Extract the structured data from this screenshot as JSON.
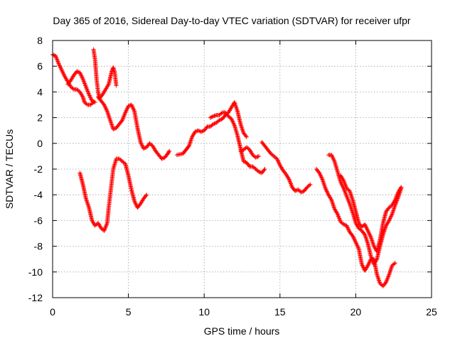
{
  "chart_data": {
    "type": "scatter",
    "title": "Day 365 of 2016, Sidereal Day-to-day VTEC variation (SDTVAR) for receiver ufpr",
    "xlabel": "GPS time / hours",
    "ylabel": "SDTVAR / TECUs",
    "xlim": [
      0,
      25
    ],
    "ylim": [
      -12,
      8
    ],
    "xticks": [
      "0",
      "5",
      "10",
      "15",
      "20",
      "25"
    ],
    "yticks": [
      "-12",
      "-10",
      "-8",
      "-6",
      "-4",
      "-2",
      "0",
      "2",
      "4",
      "6",
      "8"
    ],
    "grid": true,
    "marker": "plus",
    "color": "#ff0000",
    "series": [
      {
        "points": [
          [
            0.0,
            6.9
          ],
          [
            0.2,
            6.8
          ],
          [
            0.4,
            6.2
          ],
          [
            0.6,
            5.7
          ],
          [
            0.8,
            5.2
          ],
          [
            1.0,
            4.8
          ],
          [
            1.2,
            4.4
          ],
          [
            1.4,
            4.2
          ],
          [
            1.6,
            4.2
          ],
          [
            1.8,
            4.0
          ],
          [
            2.0,
            3.6
          ],
          [
            2.1,
            3.2
          ],
          [
            2.3,
            3.0
          ],
          [
            2.5,
            3.0
          ],
          [
            2.7,
            3.2
          ]
        ]
      },
      {
        "points": [
          [
            1.0,
            4.6
          ],
          [
            1.2,
            4.9
          ],
          [
            1.4,
            5.3
          ],
          [
            1.6,
            5.6
          ],
          [
            1.8,
            5.5
          ],
          [
            2.0,
            5.0
          ],
          [
            2.2,
            4.4
          ],
          [
            2.4,
            3.8
          ],
          [
            2.6,
            3.3
          ],
          [
            2.8,
            3.2
          ]
        ]
      },
      {
        "points": [
          [
            2.7,
            7.3
          ],
          [
            2.8,
            6.5
          ],
          [
            2.9,
            5.0
          ],
          [
            3.0,
            4.0
          ],
          [
            3.1,
            3.5
          ],
          [
            3.3,
            3.8
          ],
          [
            3.5,
            4.2
          ],
          [
            3.7,
            4.6
          ],
          [
            3.9,
            5.6
          ],
          [
            4.0,
            5.9
          ],
          [
            4.1,
            5.5
          ],
          [
            4.2,
            4.5
          ]
        ]
      },
      {
        "points": [
          [
            3.0,
            3.6
          ],
          [
            3.2,
            3.3
          ],
          [
            3.4,
            3.0
          ],
          [
            3.6,
            2.5
          ],
          [
            3.8,
            1.8
          ],
          [
            4.0,
            1.1
          ],
          [
            4.2,
            1.2
          ],
          [
            4.4,
            1.5
          ],
          [
            4.6,
            1.8
          ],
          [
            4.8,
            2.4
          ],
          [
            5.0,
            2.9
          ],
          [
            5.2,
            3.0
          ],
          [
            5.4,
            2.5
          ],
          [
            5.6,
            1.2
          ],
          [
            5.8,
            0.1
          ],
          [
            6.0,
            -0.4
          ],
          [
            6.2,
            -0.3
          ],
          [
            6.4,
            0.0
          ],
          [
            6.6,
            -0.2
          ],
          [
            6.8,
            -0.6
          ],
          [
            7.0,
            -0.9
          ],
          [
            7.2,
            -1.2
          ],
          [
            7.4,
            -1.1
          ],
          [
            7.6,
            -0.8
          ],
          [
            7.7,
            -0.6
          ]
        ]
      },
      {
        "points": [
          [
            1.8,
            -2.3
          ],
          [
            2.0,
            -3.2
          ],
          [
            2.2,
            -4.3
          ],
          [
            2.4,
            -5.0
          ],
          [
            2.6,
            -6.0
          ],
          [
            2.8,
            -6.4
          ],
          [
            3.0,
            -6.2
          ],
          [
            3.2,
            -6.6
          ],
          [
            3.4,
            -6.8
          ],
          [
            3.6,
            -6.2
          ],
          [
            3.7,
            -5.0
          ],
          [
            3.8,
            -4.0
          ],
          [
            3.9,
            -3.0
          ],
          [
            4.0,
            -2.0
          ],
          [
            4.2,
            -1.2
          ],
          [
            4.4,
            -1.2
          ],
          [
            4.6,
            -1.4
          ],
          [
            4.8,
            -1.6
          ],
          [
            5.0,
            -2.5
          ],
          [
            5.2,
            -3.6
          ],
          [
            5.4,
            -4.5
          ],
          [
            5.6,
            -5.0
          ],
          [
            5.8,
            -4.7
          ],
          [
            6.0,
            -4.3
          ],
          [
            6.2,
            -4.0
          ]
        ]
      },
      {
        "points": [
          [
            8.2,
            -0.9
          ],
          [
            8.6,
            -0.8
          ],
          [
            9.0,
            -0.2
          ],
          [
            9.2,
            0.5
          ],
          [
            9.4,
            0.9
          ],
          [
            9.6,
            1.0
          ],
          [
            9.8,
            0.9
          ],
          [
            10.0,
            1.0
          ],
          [
            10.2,
            1.3
          ],
          [
            10.4,
            1.3
          ],
          [
            10.6,
            1.5
          ],
          [
            10.8,
            1.6
          ],
          [
            11.0,
            1.8
          ],
          [
            11.2,
            1.9
          ],
          [
            11.4,
            2.2
          ],
          [
            11.6,
            2.4
          ],
          [
            11.8,
            2.8
          ],
          [
            12.0,
            3.2
          ],
          [
            12.2,
            2.5
          ],
          [
            12.4,
            1.5
          ],
          [
            12.6,
            0.8
          ],
          [
            12.8,
            0.5
          ]
        ]
      },
      {
        "points": [
          [
            10.4,
            2.0
          ],
          [
            10.6,
            2.1
          ],
          [
            10.8,
            2.2
          ],
          [
            11.0,
            2.2
          ],
          [
            11.2,
            2.4
          ],
          [
            11.4,
            2.4
          ],
          [
            11.6,
            2.1
          ],
          [
            11.8,
            1.9
          ],
          [
            12.0,
            1.4
          ],
          [
            12.2,
            0.6
          ],
          [
            12.4,
            -0.4
          ],
          [
            12.6,
            -1.4
          ],
          [
            12.8,
            -1.5
          ],
          [
            13.0,
            -1.8
          ],
          [
            13.2,
            -1.8
          ],
          [
            13.4,
            -2.0
          ],
          [
            13.6,
            -2.2
          ],
          [
            13.8,
            -2.3
          ],
          [
            14.0,
            -2.0
          ]
        ]
      },
      {
        "points": [
          [
            12.4,
            -0.6
          ],
          [
            12.6,
            -0.5
          ],
          [
            12.8,
            -0.3
          ],
          [
            13.0,
            -0.5
          ],
          [
            13.2,
            -0.9
          ],
          [
            13.4,
            -1.1
          ],
          [
            13.6,
            -1.0
          ]
        ]
      },
      {
        "points": [
          [
            13.8,
            0.1
          ],
          [
            14.0,
            -0.2
          ],
          [
            14.2,
            -0.5
          ],
          [
            14.4,
            -0.8
          ],
          [
            14.6,
            -1.0
          ],
          [
            14.8,
            -1.2
          ],
          [
            15.0,
            -1.7
          ],
          [
            15.2,
            -2.1
          ],
          [
            15.4,
            -2.4
          ],
          [
            15.6,
            -2.8
          ],
          [
            15.8,
            -3.4
          ],
          [
            16.0,
            -3.7
          ],
          [
            16.2,
            -3.6
          ],
          [
            16.4,
            -3.8
          ],
          [
            16.6,
            -3.7
          ],
          [
            16.8,
            -3.4
          ],
          [
            17.0,
            -3.2
          ]
        ]
      },
      {
        "points": [
          [
            17.4,
            -2.0
          ],
          [
            17.6,
            -2.3
          ],
          [
            17.8,
            -2.8
          ],
          [
            18.0,
            -3.5
          ],
          [
            18.2,
            -4.0
          ],
          [
            18.4,
            -4.4
          ],
          [
            18.6,
            -5.1
          ],
          [
            18.8,
            -5.5
          ],
          [
            19.0,
            -6.1
          ],
          [
            19.2,
            -6.3
          ],
          [
            19.4,
            -6.4
          ],
          [
            19.6,
            -6.9
          ],
          [
            19.8,
            -7.2
          ],
          [
            20.0,
            -7.7
          ],
          [
            20.2,
            -8.2
          ],
          [
            20.4,
            -9.4
          ],
          [
            20.6,
            -9.9
          ],
          [
            20.8,
            -9.5
          ],
          [
            21.0,
            -9.0
          ],
          [
            21.2,
            -9.0
          ],
          [
            21.4,
            -10.2
          ],
          [
            21.6,
            -10.9
          ],
          [
            21.8,
            -11.1
          ],
          [
            22.0,
            -10.8
          ],
          [
            22.2,
            -10.2
          ],
          [
            22.4,
            -9.5
          ],
          [
            22.6,
            -9.3
          ]
        ]
      },
      {
        "points": [
          [
            18.2,
            -0.9
          ],
          [
            18.4,
            -0.9
          ],
          [
            18.6,
            -1.4
          ],
          [
            18.8,
            -2.2
          ],
          [
            19.0,
            -3.0
          ],
          [
            19.2,
            -3.5
          ],
          [
            19.4,
            -4.1
          ],
          [
            19.6,
            -4.7
          ],
          [
            19.8,
            -5.4
          ],
          [
            20.0,
            -6.2
          ],
          [
            20.2,
            -6.6
          ],
          [
            20.4,
            -6.8
          ],
          [
            20.6,
            -7.1
          ],
          [
            20.8,
            -7.8
          ],
          [
            21.0,
            -8.8
          ],
          [
            21.2,
            -9.4
          ],
          [
            21.4,
            -9.0
          ],
          [
            21.6,
            -8.0
          ],
          [
            21.8,
            -7.1
          ],
          [
            22.0,
            -6.4
          ],
          [
            22.2,
            -6.0
          ],
          [
            22.4,
            -5.5
          ],
          [
            22.6,
            -4.8
          ],
          [
            22.8,
            -4.2
          ],
          [
            23.0,
            -3.5
          ]
        ]
      },
      {
        "points": [
          [
            19.0,
            -2.5
          ],
          [
            19.2,
            -2.9
          ],
          [
            19.4,
            -3.5
          ],
          [
            19.6,
            -3.7
          ],
          [
            19.8,
            -4.4
          ],
          [
            20.0,
            -5.3
          ],
          [
            20.2,
            -6.2
          ],
          [
            20.4,
            -6.5
          ],
          [
            20.6,
            -6.3
          ],
          [
            20.8,
            -6.8
          ],
          [
            21.0,
            -7.3
          ],
          [
            21.2,
            -8.0
          ],
          [
            21.4,
            -8.4
          ],
          [
            21.6,
            -7.5
          ],
          [
            21.8,
            -6.2
          ],
          [
            22.0,
            -5.3
          ],
          [
            22.2,
            -5.0
          ],
          [
            22.4,
            -4.8
          ],
          [
            22.6,
            -4.4
          ],
          [
            22.8,
            -3.8
          ],
          [
            23.0,
            -3.4
          ]
        ]
      }
    ]
  }
}
